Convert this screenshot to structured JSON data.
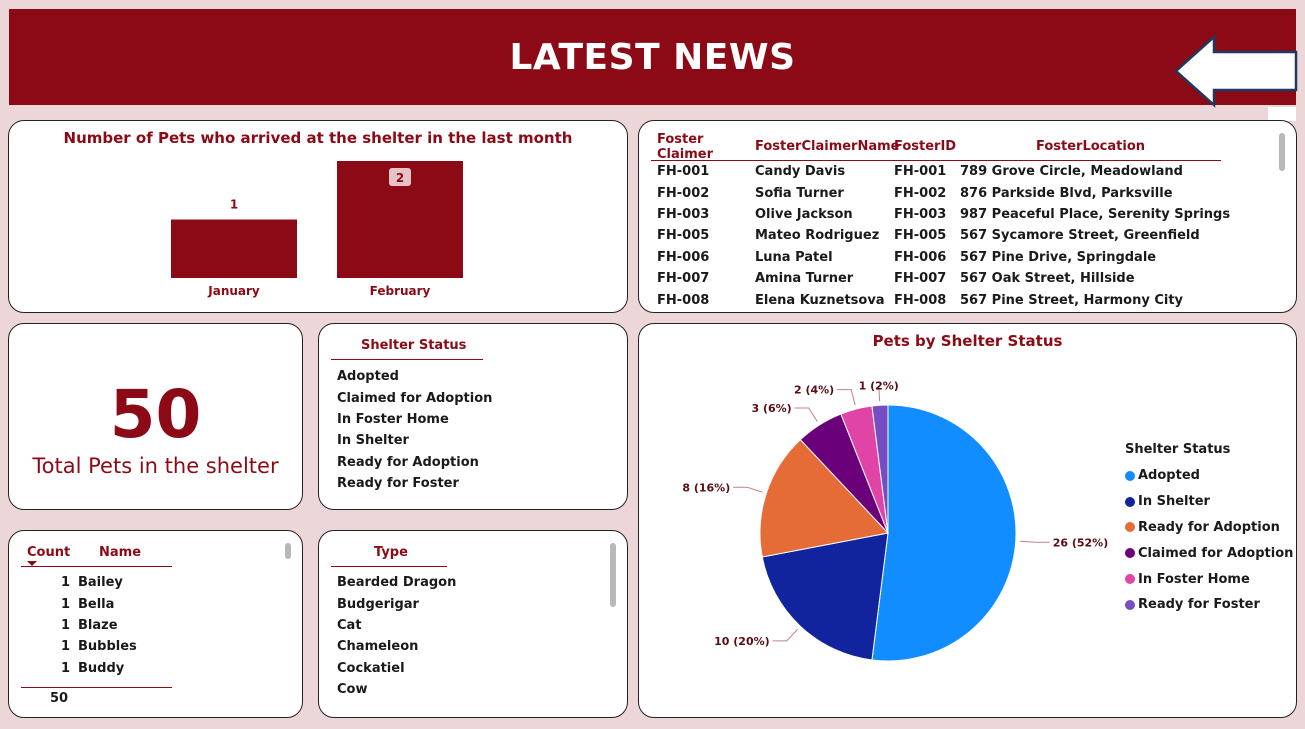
{
  "header": {
    "title": "LATEST NEWS",
    "back_icon": "left-arrow-icon"
  },
  "colors": {
    "brand": "#8b0a15",
    "background": "#ecd6d8"
  },
  "arrivals_chart": {
    "chart_data": {
      "type": "bar",
      "title": "Number of Pets who arrived at the shelter in the last month",
      "categories": [
        "January",
        "February"
      ],
      "values": [
        1,
        2
      ],
      "ylim": [
        0,
        2
      ],
      "color": "#8b0a15"
    }
  },
  "foster_table": {
    "columns": [
      "Foster Claimer",
      "FosterClaimerName",
      "FosterID",
      "FosterLocation"
    ],
    "rows": [
      [
        "FH-001",
        "Candy Davis",
        "FH-001",
        "789 Grove Circle, Meadowland"
      ],
      [
        "FH-002",
        "Sofia Turner",
        "FH-002",
        "876 Parkside Blvd, Parksville"
      ],
      [
        "FH-003",
        "Olive Jackson",
        "FH-003",
        "987 Peaceful Place, Serenity Springs"
      ],
      [
        "FH-005",
        "Mateo Rodriguez",
        "FH-005",
        "567 Sycamore Street, Greenfield"
      ],
      [
        "FH-006",
        "Luna Patel",
        "FH-006",
        "567 Pine Drive, Springdale"
      ],
      [
        "FH-007",
        "Amina Turner",
        "FH-007",
        "567 Oak Street, Hillside"
      ],
      [
        "FH-008",
        "Elena Kuznetsova",
        "FH-008",
        "567 Pine Street, Harmony City"
      ]
    ]
  },
  "kpi": {
    "value": "50",
    "label": "Total Pets in the shelter"
  },
  "shelter_status_slicer": {
    "header": "Shelter Status",
    "items": [
      "Adopted",
      "Claimed for Adoption",
      "In Foster Home",
      "In Shelter",
      "Ready for Adoption",
      "Ready for Foster"
    ]
  },
  "name_table": {
    "columns": [
      "Count",
      "Name"
    ],
    "sort_icon": "sort-desc-icon",
    "rows": [
      [
        "1",
        "Bailey"
      ],
      [
        "1",
        "Bella"
      ],
      [
        "1",
        "Blaze"
      ],
      [
        "1",
        "Bubbles"
      ],
      [
        "1",
        "Buddy"
      ]
    ],
    "total": "50"
  },
  "type_list": {
    "header": "Type",
    "items": [
      "Bearded Dragon",
      "Budgerigar",
      "Cat",
      "Chameleon",
      "Cockatiel",
      "Cow"
    ]
  },
  "status_pie": {
    "chart_data": {
      "type": "pie",
      "title": "Pets by Shelter Status",
      "legend_title": "Shelter Status",
      "legend_position": "right",
      "slices": [
        {
          "name": "Adopted",
          "value": 26,
          "label": "26 (52%)",
          "color": "#118dff"
        },
        {
          "name": "In Shelter",
          "value": 10,
          "label": "10 (20%)",
          "color": "#12239e"
        },
        {
          "name": "Ready for Adoption",
          "value": 8,
          "label": "8 (16%)",
          "color": "#e66c37"
        },
        {
          "name": "Claimed for Adoption",
          "value": 3,
          "label": "3 (6%)",
          "color": "#6b007b"
        },
        {
          "name": "In Foster Home",
          "value": 2,
          "label": "2 (4%)",
          "color": "#e044a7"
        },
        {
          "name": "Ready for Foster",
          "value": 1,
          "label": "1 (2%)",
          "color": "#744ec2"
        }
      ]
    }
  }
}
